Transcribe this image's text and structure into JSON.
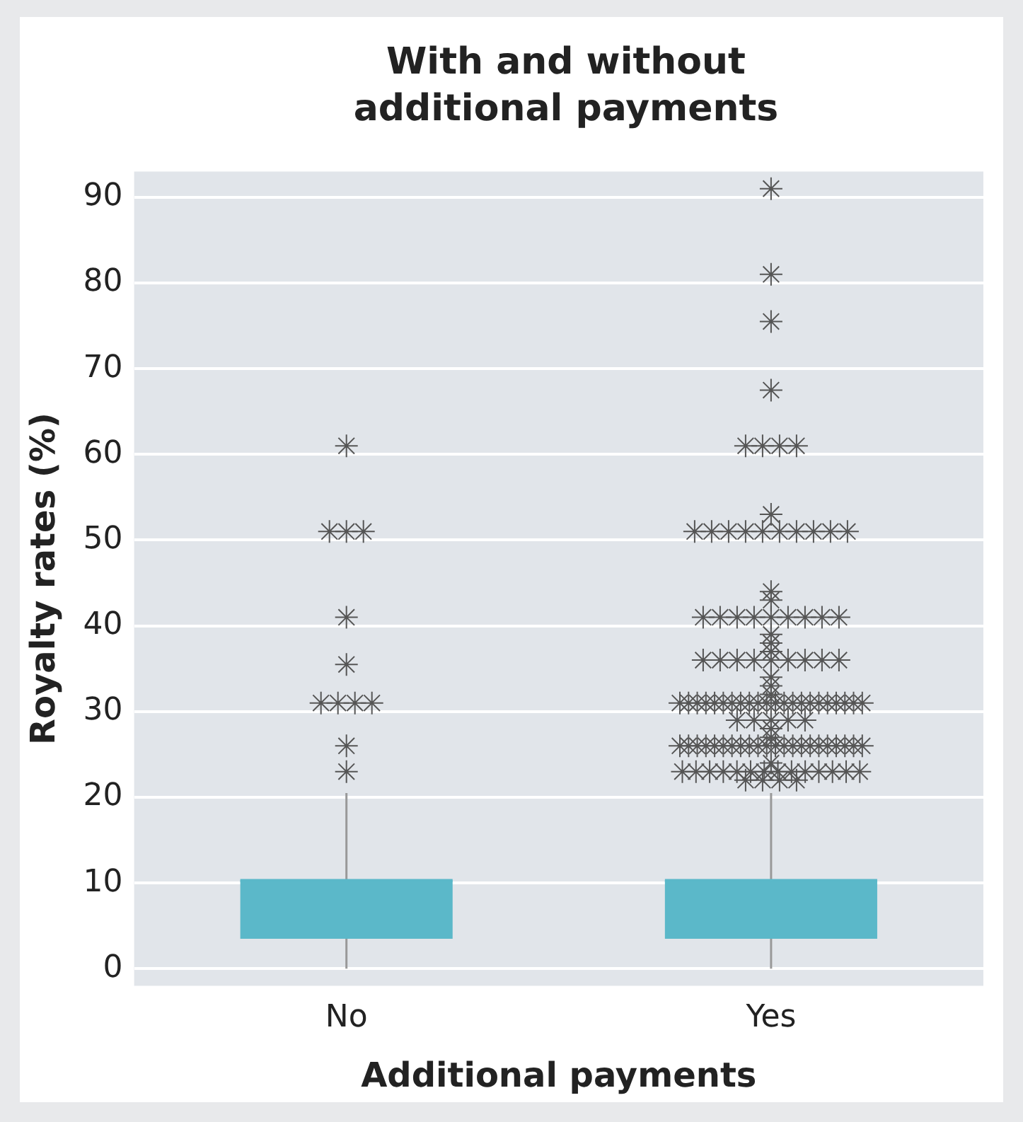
{
  "chart_data": {
    "type": "box",
    "title": "With and without additional payments",
    "xlabel": "Additional payments",
    "ylabel": "Royalty rates (%)",
    "categories": [
      "No",
      "Yes"
    ],
    "color": "#5bb8c9",
    "marker": "star",
    "boxes": [
      {
        "low": 0,
        "q1": 3.5,
        "median": 10.3,
        "q3": 10.3,
        "high": 20.5,
        "outliers": [
          61,
          51,
          51,
          51,
          41,
          35.5,
          31,
          31,
          31,
          31,
          26,
          23
        ]
      },
      {
        "low": 0,
        "q1": 3.5,
        "median": 10.3,
        "q3": 10.3,
        "high": 20.5,
        "outliers": [
          91,
          81,
          75.5,
          67.5,
          61,
          61,
          61,
          61,
          53,
          51,
          51,
          51,
          51,
          51,
          51,
          51,
          51,
          51,
          51,
          44,
          43,
          41,
          41,
          41,
          41,
          41,
          41,
          41,
          41,
          41,
          39,
          38,
          37,
          36,
          36,
          36,
          36,
          36,
          36,
          36,
          36,
          36,
          34,
          33,
          32,
          31,
          31,
          31,
          31,
          31,
          31,
          31,
          31,
          31,
          31,
          31,
          31,
          31,
          31,
          31,
          31,
          31,
          31,
          31,
          31,
          31,
          31,
          29,
          29,
          29,
          29,
          29,
          28,
          27,
          26,
          26,
          26,
          26,
          26,
          26,
          26,
          26,
          26,
          26,
          26,
          26,
          26,
          26,
          26,
          26,
          26,
          26,
          26,
          26,
          26,
          26,
          24,
          23,
          23,
          23,
          23,
          23,
          23,
          23,
          23,
          23,
          23,
          23,
          23,
          23,
          23,
          22,
          22,
          22,
          22
        ]
      }
    ],
    "ylim": [
      -2,
      93
    ],
    "yticks": [
      0,
      10,
      20,
      30,
      40,
      50,
      60,
      70,
      80,
      90
    ],
    "grid": "y",
    "legend": false
  }
}
